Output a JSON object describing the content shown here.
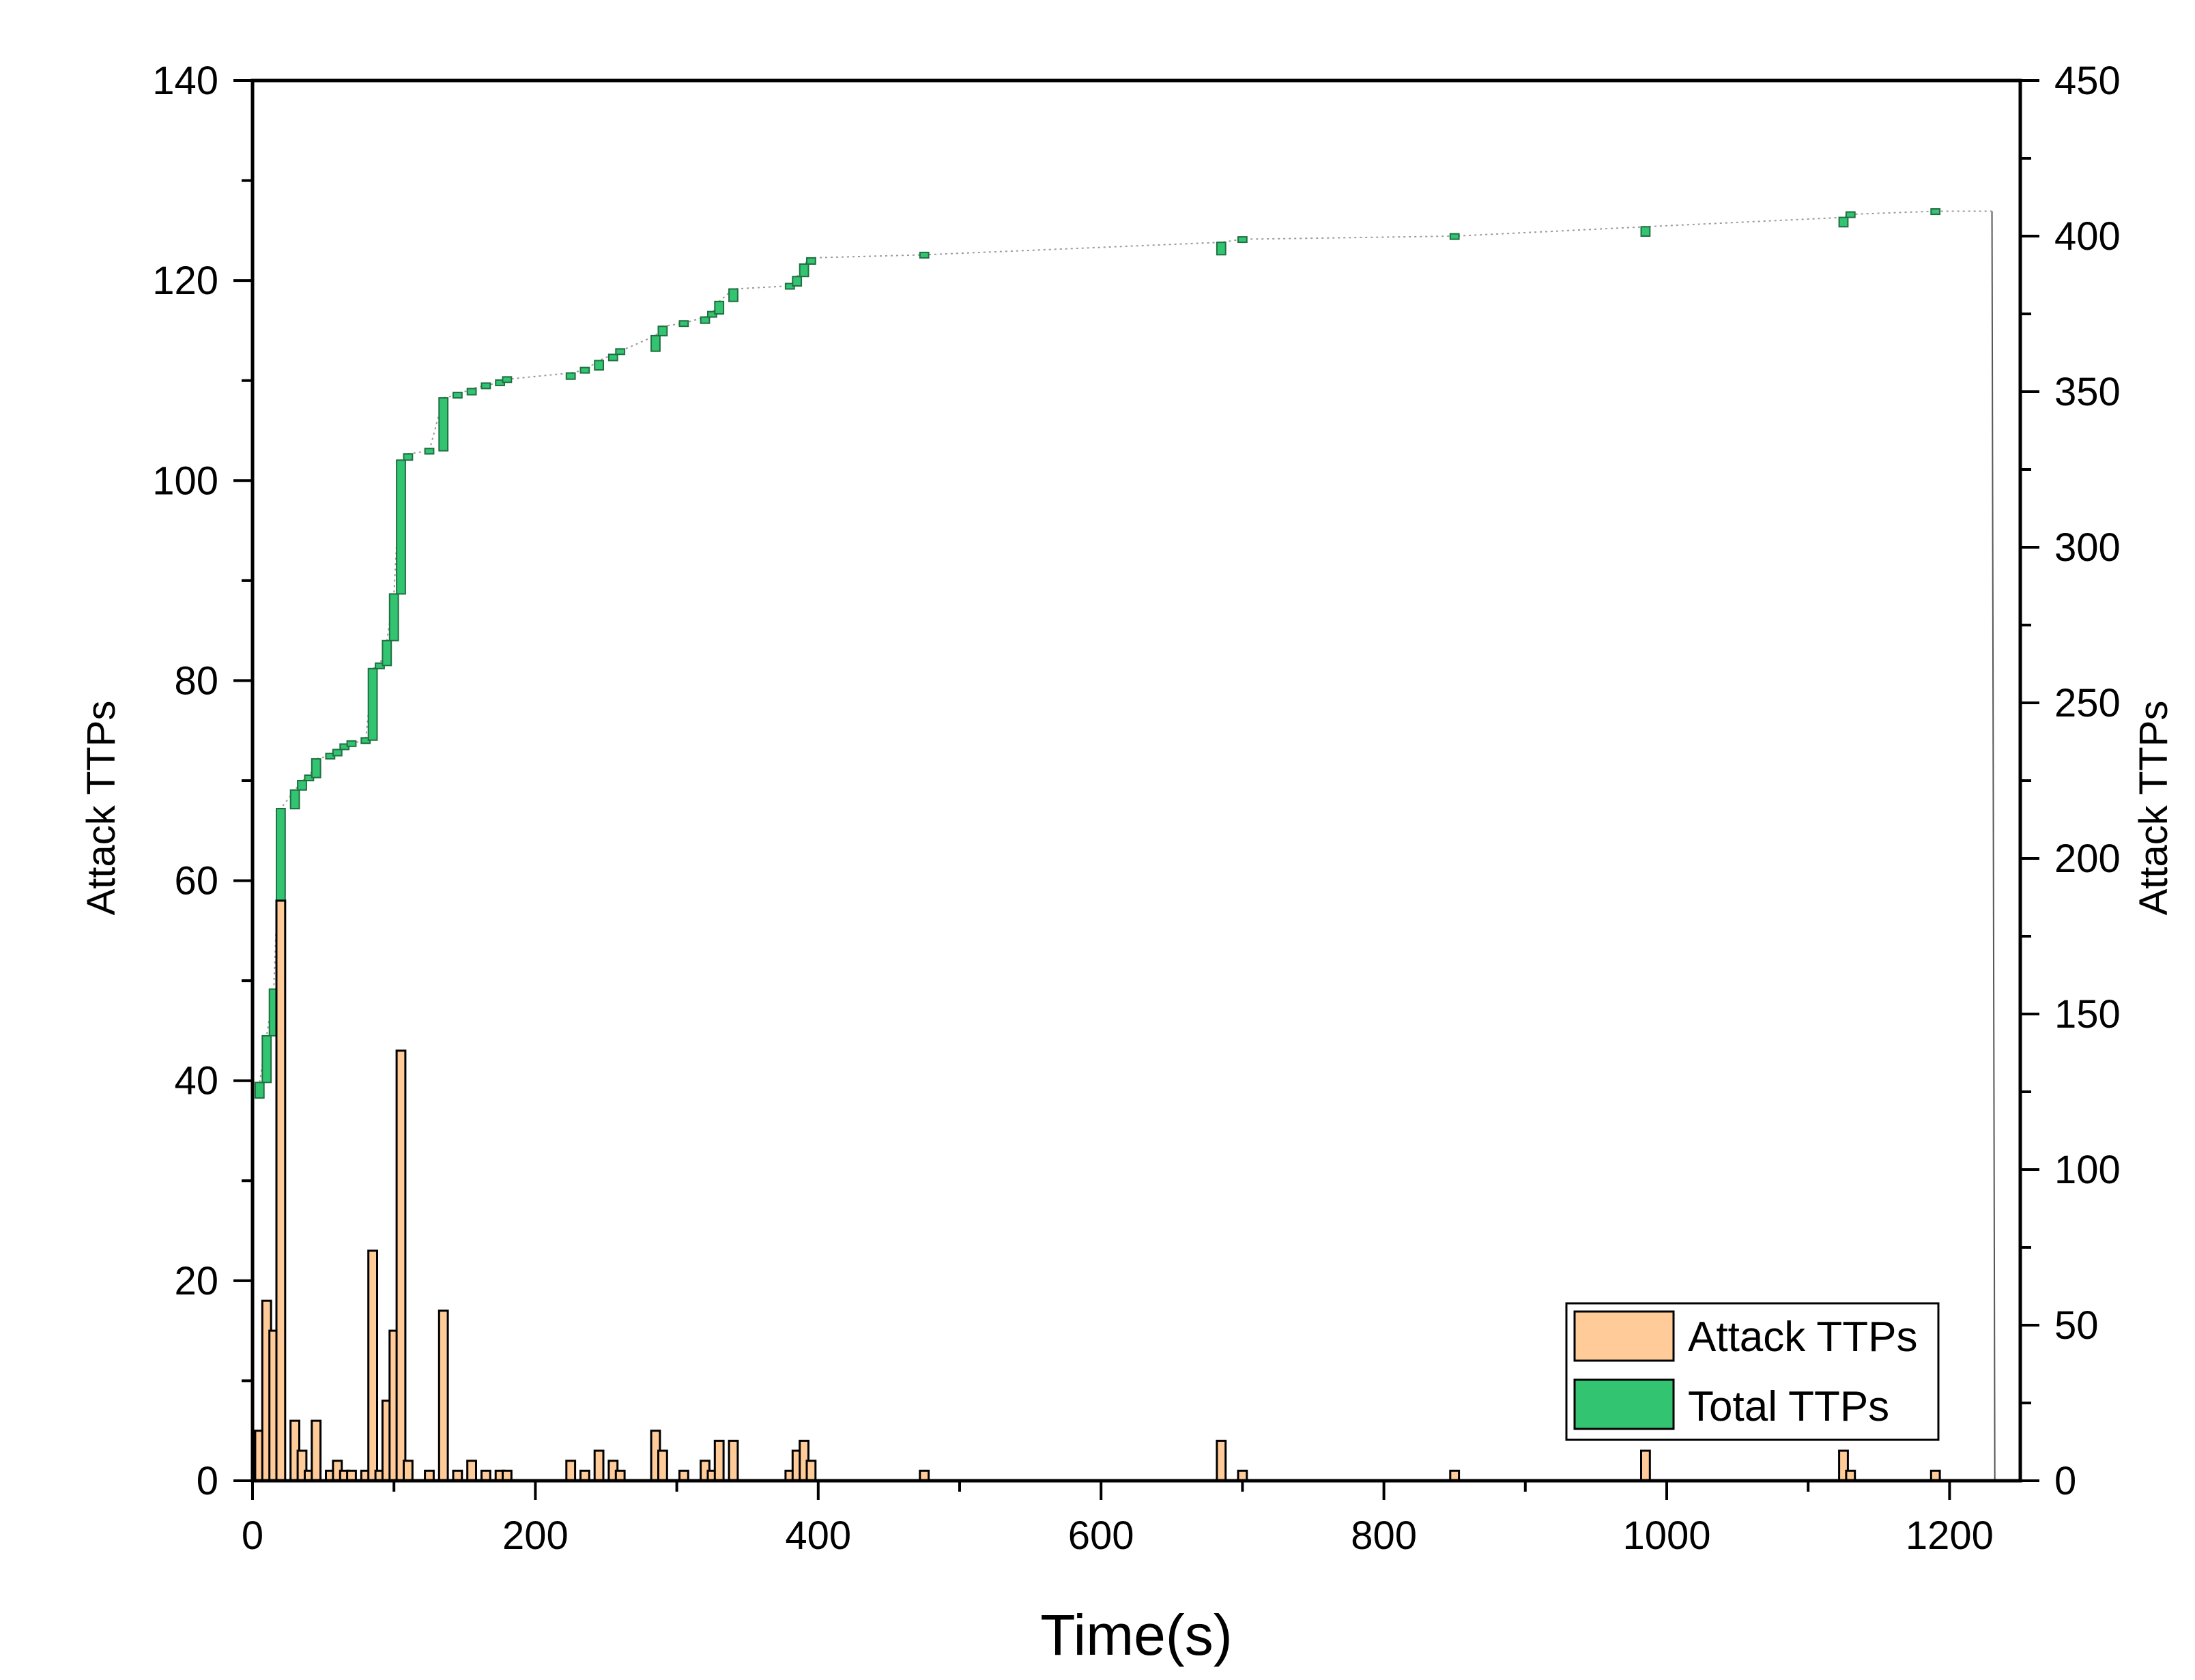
{
  "chart_data": {
    "type": "bar",
    "xlabel": "Time(s)",
    "ylabel_left": "Attack TTPs",
    "ylabel_right": "Attack TTPs",
    "xlim": [
      0,
      1250
    ],
    "ylim_left": [
      0,
      140
    ],
    "ylim_right": [
      0,
      450
    ],
    "x_ticks": [
      "0",
      "200",
      "400",
      "600",
      "800",
      "1000",
      "1200"
    ],
    "y_left_ticks": [
      "0",
      "20",
      "40",
      "60",
      "80",
      "100",
      "120",
      "140"
    ],
    "y_right_ticks": [
      "0",
      "50",
      "100",
      "150",
      "200",
      "250",
      "300",
      "350",
      "400",
      "450"
    ],
    "grid": false,
    "legend_position": "bottom-right",
    "colors": {
      "attack": "#FFCC99",
      "total": "#33C472",
      "edge": "#000000"
    },
    "series": [
      {
        "name": "Attack TTPs",
        "axis": "left",
        "points": [
          {
            "x": 5,
            "y": 5
          },
          {
            "x": 10,
            "y": 18
          },
          {
            "x": 15,
            "y": 15
          },
          {
            "x": 20,
            "y": 58
          },
          {
            "x": 30,
            "y": 6
          },
          {
            "x": 35,
            "y": 3
          },
          {
            "x": 40,
            "y": 1
          },
          {
            "x": 45,
            "y": 6
          },
          {
            "x": 55,
            "y": 1
          },
          {
            "x": 60,
            "y": 2
          },
          {
            "x": 65,
            "y": 1
          },
          {
            "x": 70,
            "y": 1
          },
          {
            "x": 80,
            "y": 1
          },
          {
            "x": 85,
            "y": 23
          },
          {
            "x": 90,
            "y": 1
          },
          {
            "x": 95,
            "y": 8
          },
          {
            "x": 100,
            "y": 15
          },
          {
            "x": 105,
            "y": 43
          },
          {
            "x": 110,
            "y": 2
          },
          {
            "x": 125,
            "y": 1
          },
          {
            "x": 135,
            "y": 17
          },
          {
            "x": 145,
            "y": 1
          },
          {
            "x": 155,
            "y": 2
          },
          {
            "x": 165,
            "y": 1
          },
          {
            "x": 175,
            "y": 1
          },
          {
            "x": 180,
            "y": 1
          },
          {
            "x": 225,
            "y": 2
          },
          {
            "x": 235,
            "y": 1
          },
          {
            "x": 245,
            "y": 3
          },
          {
            "x": 255,
            "y": 2
          },
          {
            "x": 260,
            "y": 1
          },
          {
            "x": 285,
            "y": 5
          },
          {
            "x": 290,
            "y": 3
          },
          {
            "x": 305,
            "y": 1
          },
          {
            "x": 320,
            "y": 2
          },
          {
            "x": 325,
            "y": 1
          },
          {
            "x": 330,
            "y": 4
          },
          {
            "x": 340,
            "y": 4
          },
          {
            "x": 380,
            "y": 1
          },
          {
            "x": 385,
            "y": 3
          },
          {
            "x": 390,
            "y": 4
          },
          {
            "x": 395,
            "y": 2
          },
          {
            "x": 475,
            "y": 1
          },
          {
            "x": 685,
            "y": 4
          },
          {
            "x": 700,
            "y": 1
          },
          {
            "x": 850,
            "y": 1
          },
          {
            "x": 985,
            "y": 3
          },
          {
            "x": 1125,
            "y": 3
          },
          {
            "x": 1130,
            "y": 1
          },
          {
            "x": 1190,
            "y": 1
          }
        ]
      },
      {
        "name": "Total TTPs",
        "axis": "right",
        "points": [
          {
            "x": 5,
            "y": 128
          },
          {
            "x": 10,
            "y": 143
          },
          {
            "x": 15,
            "y": 158
          },
          {
            "x": 20,
            "y": 216
          },
          {
            "x": 30,
            "y": 222
          },
          {
            "x": 35,
            "y": 225
          },
          {
            "x": 40,
            "y": 226
          },
          {
            "x": 45,
            "y": 232
          },
          {
            "x": 55,
            "y": 233
          },
          {
            "x": 60,
            "y": 235
          },
          {
            "x": 65,
            "y": 236
          },
          {
            "x": 70,
            "y": 237
          },
          {
            "x": 80,
            "y": 238
          },
          {
            "x": 85,
            "y": 261
          },
          {
            "x": 90,
            "y": 262
          },
          {
            "x": 95,
            "y": 270
          },
          {
            "x": 100,
            "y": 285
          },
          {
            "x": 105,
            "y": 328
          },
          {
            "x": 110,
            "y": 330
          },
          {
            "x": 125,
            "y": 331
          },
          {
            "x": 135,
            "y": 348
          },
          {
            "x": 145,
            "y": 349
          },
          {
            "x": 155,
            "y": 351
          },
          {
            "x": 165,
            "y": 352
          },
          {
            "x": 175,
            "y": 353
          },
          {
            "x": 180,
            "y": 354
          },
          {
            "x": 225,
            "y": 356
          },
          {
            "x": 235,
            "y": 357
          },
          {
            "x": 245,
            "y": 360
          },
          {
            "x": 255,
            "y": 362
          },
          {
            "x": 260,
            "y": 363
          },
          {
            "x": 285,
            "y": 368
          },
          {
            "x": 290,
            "y": 371
          },
          {
            "x": 305,
            "y": 372
          },
          {
            "x": 320,
            "y": 374
          },
          {
            "x": 325,
            "y": 375
          },
          {
            "x": 330,
            "y": 379
          },
          {
            "x": 340,
            "y": 383
          },
          {
            "x": 380,
            "y": 384
          },
          {
            "x": 385,
            "y": 387
          },
          {
            "x": 390,
            "y": 391
          },
          {
            "x": 395,
            "y": 393
          },
          {
            "x": 475,
            "y": 394
          },
          {
            "x": 685,
            "y": 398
          },
          {
            "x": 700,
            "y": 399
          },
          {
            "x": 850,
            "y": 400
          },
          {
            "x": 985,
            "y": 403
          },
          {
            "x": 1125,
            "y": 406
          },
          {
            "x": 1130,
            "y": 407
          },
          {
            "x": 1190,
            "y": 408
          }
        ]
      }
    ]
  }
}
